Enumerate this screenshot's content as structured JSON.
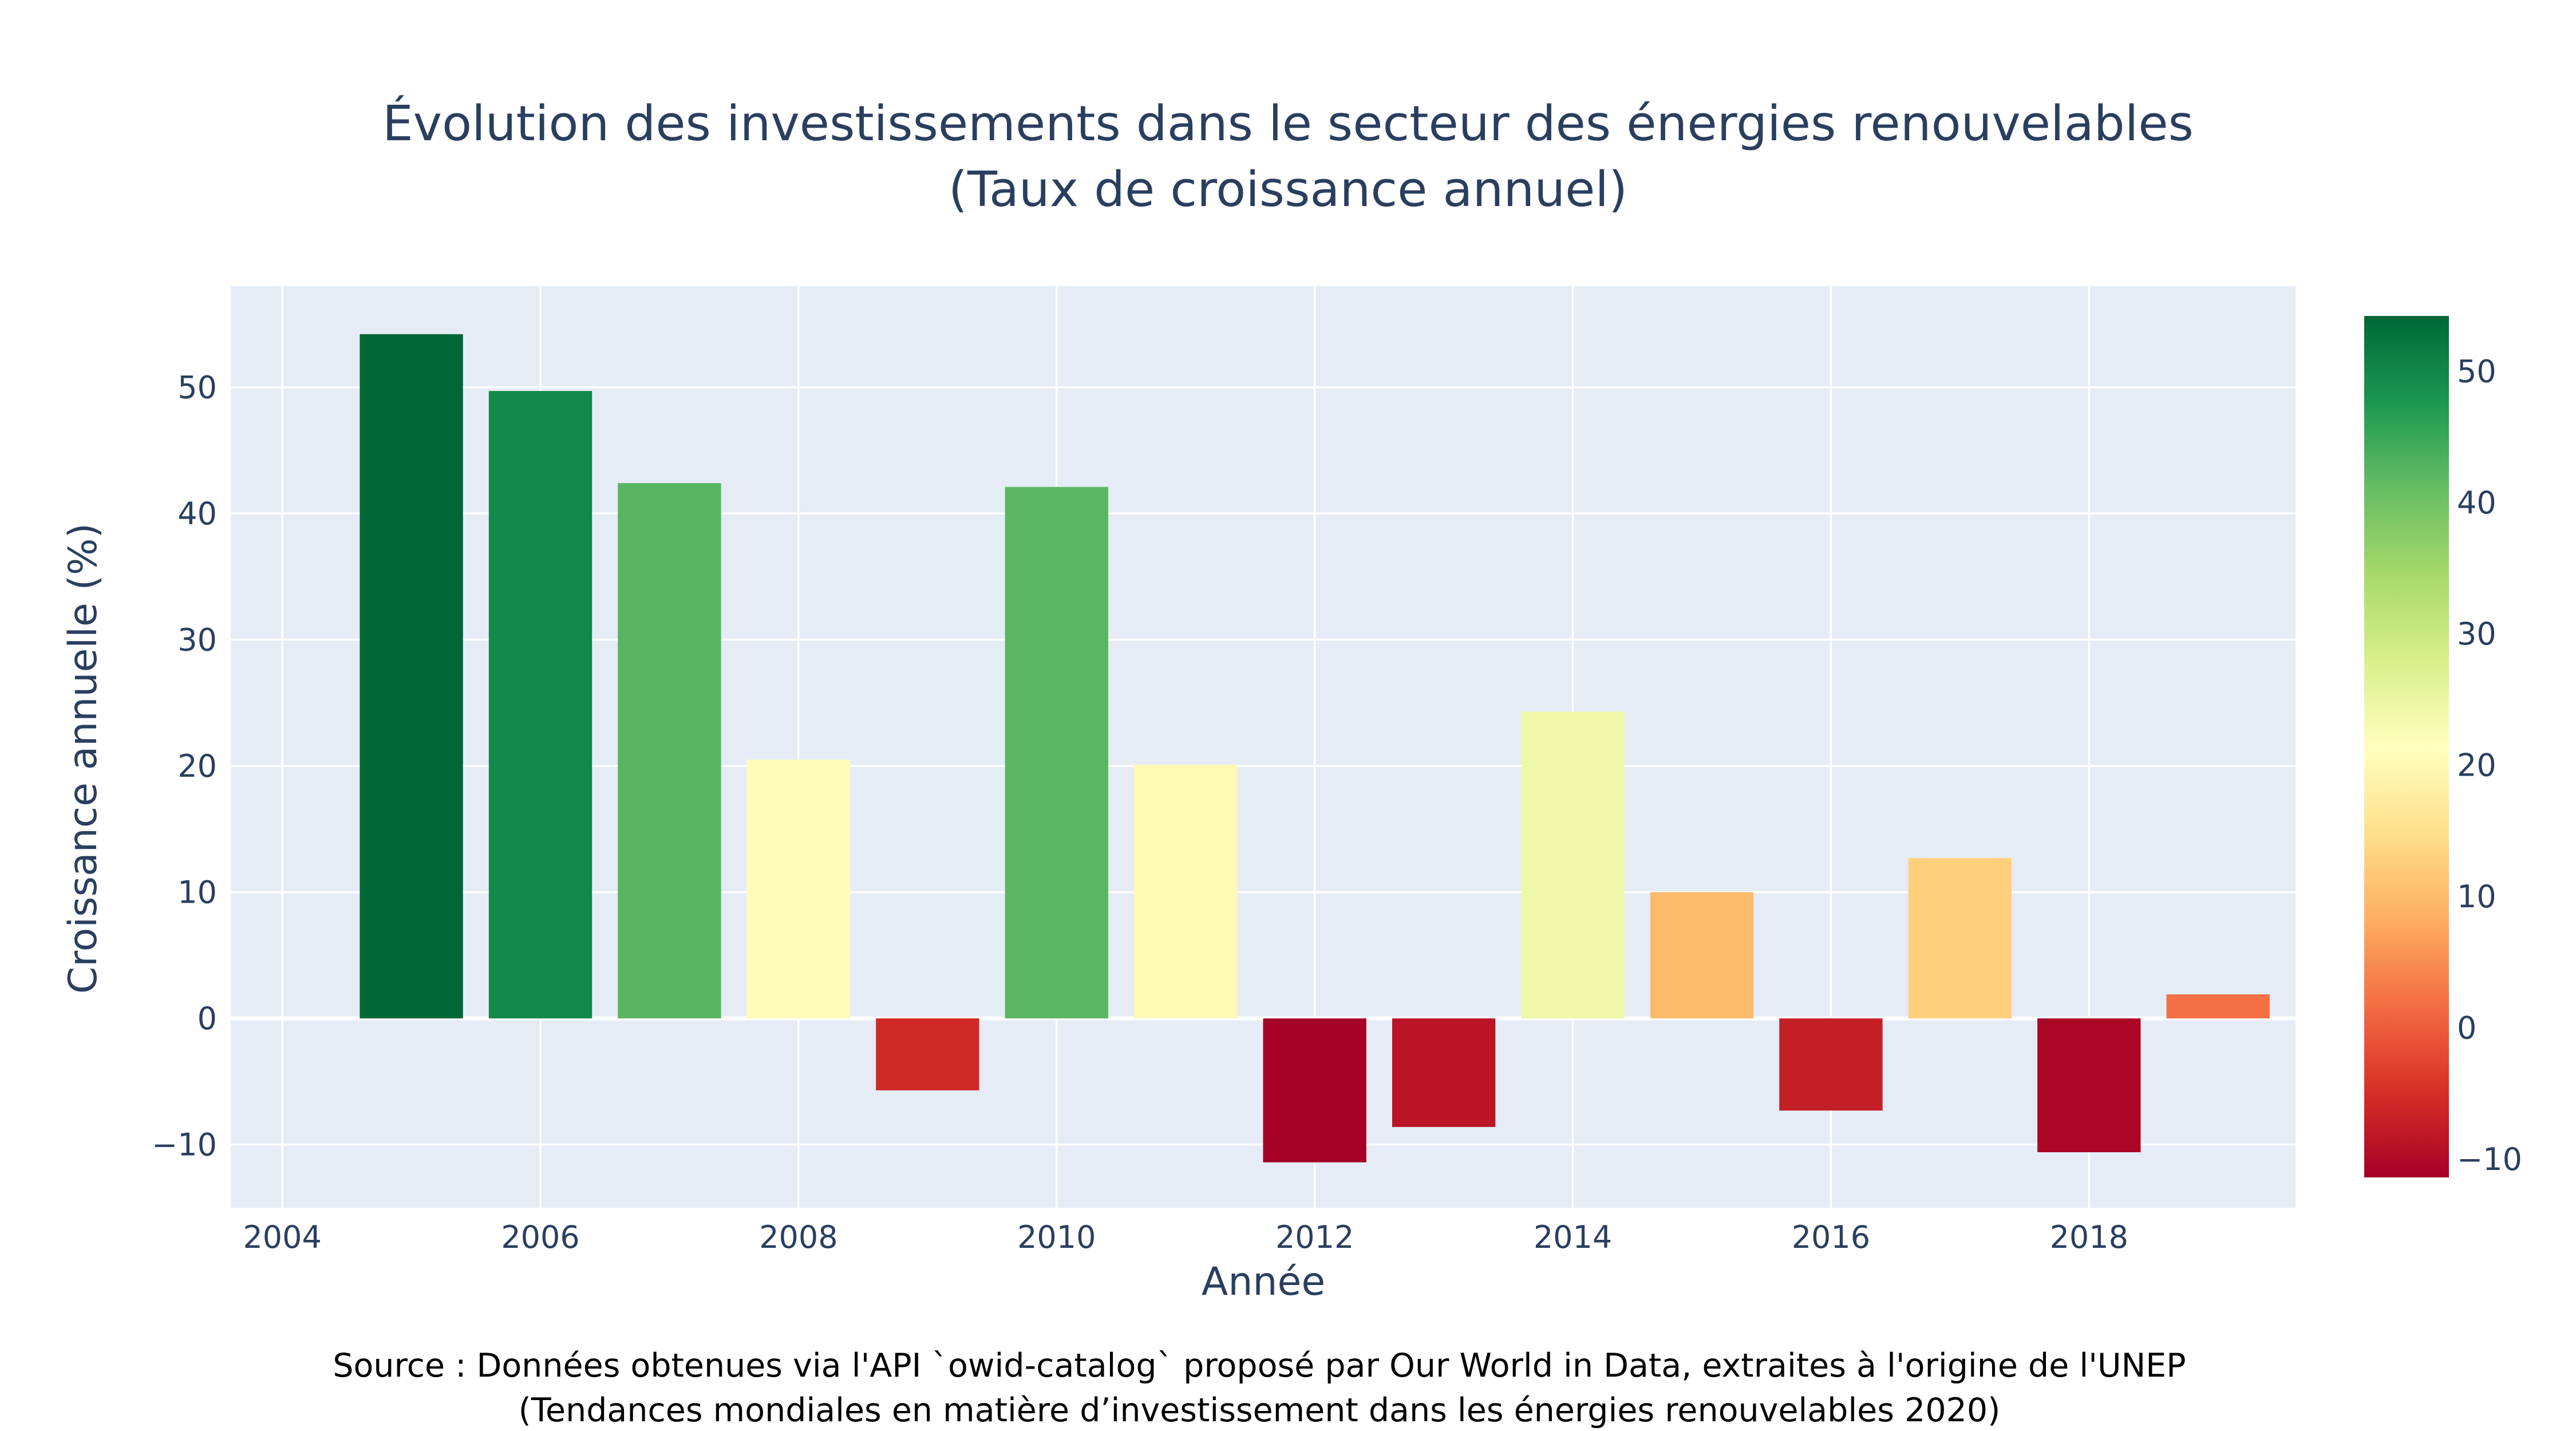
{
  "chart_data": {
    "type": "bar",
    "title": "Évolution des investissements dans le secteur des énergies renouvelables",
    "subtitle": "(Taux de croissance annuel)",
    "xlabel": "Année",
    "ylabel": "Croissance annuelle (%)",
    "x": [
      2005,
      2006,
      2007,
      2008,
      2009,
      2010,
      2011,
      2012,
      2013,
      2014,
      2015,
      2016,
      2017,
      2018,
      2019
    ],
    "values": [
      54.2,
      49.7,
      42.4,
      20.5,
      -5.7,
      42.1,
      20.1,
      -11.4,
      -8.6,
      24.3,
      10.0,
      -7.3,
      12.7,
      -10.6,
      1.9
    ],
    "xlim": [
      2003.6,
      2019.6
    ],
    "ylim": [
      -15,
      58
    ],
    "xticks": [
      2004,
      2006,
      2008,
      2010,
      2012,
      2014,
      2016,
      2018
    ],
    "yticks": [
      -10,
      0,
      10,
      20,
      30,
      40,
      50
    ],
    "ytick_labels": [
      "−10",
      "0",
      "10",
      "20",
      "30",
      "40",
      "50"
    ],
    "grid": true,
    "colorbar": {
      "colorscale": "RdYlGn",
      "range": [
        -11.4,
        54.2
      ],
      "ticks": [
        -10,
        0,
        10,
        20,
        30,
        40,
        50
      ],
      "tick_labels": [
        "−10",
        "0",
        "10",
        "20",
        "30",
        "40",
        "50"
      ],
      "stops": [
        "#a50026",
        "#d73027",
        "#f46d43",
        "#fdae61",
        "#fee08b",
        "#ffffbf",
        "#d9ef8b",
        "#a6d96a",
        "#66bd63",
        "#1a9850",
        "#006837"
      ]
    },
    "plot_background": "#e5ecf6",
    "gridline_color": "#ffffff",
    "text_color": "#2a3f5f"
  },
  "source": {
    "line1": "Source : Données obtenues via l'API `owid-catalog` proposé par Our World in Data, extraites à l'origine de l'UNEP",
    "line2": "(Tendances mondiales en matière d’investissement dans les énergies renouvelables 2020)"
  }
}
